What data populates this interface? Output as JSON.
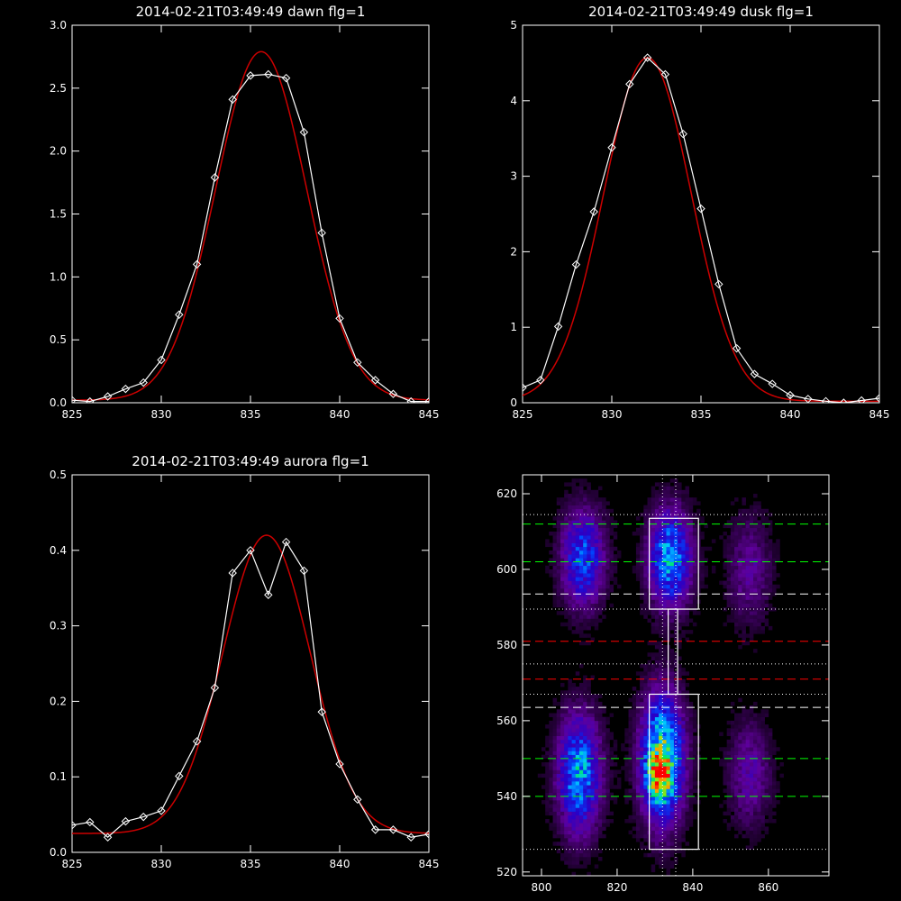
{
  "chart_data": [
    {
      "type": "line",
      "title": "2014-02-21T03:49:49 dawn flg=1",
      "xlabel": "",
      "ylabel": "",
      "xlim": [
        825,
        845
      ],
      "ylim": [
        0,
        3.0
      ],
      "xticks": [
        825,
        830,
        835,
        840,
        845
      ],
      "yticks": [
        0.0,
        0.5,
        1.0,
        1.5,
        2.0,
        2.5,
        3.0
      ],
      "ytick_labels": [
        "0.0",
        "0.5",
        "1.0",
        "1.5",
        "2.0",
        "2.5",
        "3.0"
      ],
      "series": [
        {
          "style": "measured",
          "color": "#ffffff",
          "marker": "diamond",
          "x": [
            825,
            826,
            827,
            828,
            829,
            830,
            831,
            832,
            833,
            834,
            835,
            836,
            837,
            838,
            839,
            840,
            841,
            842,
            843,
            844,
            845
          ],
          "y": [
            0.02,
            0.01,
            0.05,
            0.11,
            0.16,
            0.34,
            0.7,
            1.1,
            1.79,
            2.41,
            2.6,
            2.61,
            2.58,
            2.15,
            1.35,
            0.67,
            0.32,
            0.18,
            0.07,
            0.01,
            0.01
          ]
        },
        {
          "style": "fit",
          "color": "#cc0000",
          "model": "gaussian",
          "amplitude": 2.77,
          "center": 835.6,
          "sigma": 2.55,
          "offset": 0.02
        }
      ]
    },
    {
      "type": "line",
      "title": "2014-02-21T03:49:49 dusk flg=1",
      "xlabel": "",
      "ylabel": "",
      "xlim": [
        825,
        845
      ],
      "ylim": [
        0,
        5
      ],
      "xticks": [
        825,
        830,
        835,
        840,
        845
      ],
      "yticks": [
        0,
        1,
        2,
        3,
        4,
        5
      ],
      "ytick_labels": [
        "0",
        "1",
        "2",
        "3",
        "4",
        "5"
      ],
      "series": [
        {
          "style": "measured",
          "color": "#ffffff",
          "marker": "diamond",
          "x": [
            825,
            826,
            827,
            828,
            829,
            830,
            831,
            832,
            833,
            834,
            835,
            836,
            837,
            838,
            839,
            840,
            841,
            842,
            843,
            844,
            845
          ],
          "y": [
            0.2,
            0.3,
            1.01,
            1.83,
            2.53,
            3.38,
            4.22,
            4.57,
            4.35,
            3.56,
            2.57,
            1.57,
            0.72,
            0.38,
            0.25,
            0.1,
            0.05,
            0.02,
            0.0,
            0.03,
            0.06
          ]
        },
        {
          "style": "fit",
          "color": "#cc0000",
          "model": "gaussian",
          "amplitude": 4.55,
          "center": 832.0,
          "sigma": 2.45,
          "offset": 0.02
        }
      ]
    },
    {
      "type": "line",
      "title": "2014-02-21T03:49:49 aurora flg=1",
      "xlabel": "",
      "ylabel": "",
      "xlim": [
        825,
        845
      ],
      "ylim": [
        0,
        0.5
      ],
      "xticks": [
        825,
        830,
        835,
        840,
        845
      ],
      "yticks": [
        0.0,
        0.1,
        0.2,
        0.3,
        0.4,
        0.5
      ],
      "ytick_labels": [
        "0.0",
        "0.1",
        "0.2",
        "0.3",
        "0.4",
        "0.5"
      ],
      "series": [
        {
          "style": "measured",
          "color": "#ffffff",
          "marker": "diamond",
          "x": [
            825,
            826,
            827,
            828,
            829,
            830,
            831,
            832,
            833,
            834,
            835,
            836,
            837,
            838,
            839,
            840,
            841,
            842,
            843,
            844,
            845
          ],
          "y": [
            0.036,
            0.04,
            0.02,
            0.041,
            0.047,
            0.055,
            0.101,
            0.147,
            0.218,
            0.37,
            0.4,
            0.341,
            0.411,
            0.373,
            0.186,
            0.117,
            0.07,
            0.03,
            0.03,
            0.02,
            0.024
          ]
        },
        {
          "style": "fit",
          "color": "#cc0000",
          "model": "gaussian",
          "amplitude": 0.395,
          "center": 835.9,
          "sigma": 2.45,
          "offset": 0.025
        }
      ]
    },
    {
      "type": "heatmap",
      "title": "",
      "xlabel": "",
      "ylabel": "",
      "xlim": [
        795,
        876
      ],
      "ylim": [
        519,
        625
      ],
      "xticks": [
        800,
        820,
        840,
        860
      ],
      "yticks": [
        520,
        540,
        560,
        580,
        600,
        620
      ],
      "colormap": "rainbow",
      "blobs": [
        {
          "x": 811,
          "y": 603,
          "w": 4,
          "h": 9,
          "amp": 0.45
        },
        {
          "x": 810,
          "y": 546,
          "w": 4,
          "h": 11,
          "amp": 0.55
        },
        {
          "x": 834,
          "y": 603,
          "w": 4,
          "h": 9,
          "amp": 0.55
        },
        {
          "x": 832,
          "y": 550,
          "w": 4,
          "h": 12,
          "amp": 0.7
        },
        {
          "x": 831,
          "y": 545,
          "w": 2.5,
          "h": 4,
          "amp": 0.35
        },
        {
          "x": 855,
          "y": 600,
          "w": 4,
          "h": 10,
          "amp": 0.2
        },
        {
          "x": 855,
          "y": 546,
          "w": 4,
          "h": 10,
          "amp": 0.22
        }
      ],
      "boxes": [
        {
          "x0": 828.5,
          "x1": 841.5,
          "y0": 589.5,
          "y1": 613.5,
          "color": "#ffffff"
        },
        {
          "x0": 828.5,
          "x1": 841.5,
          "y0": 526,
          "y1": 567,
          "color": "#ffffff"
        },
        {
          "x0": 833.5,
          "x1": 836,
          "y0": 567,
          "y1": 589.5,
          "color": "#ffffff"
        }
      ],
      "hlines": [
        {
          "y": 612,
          "color": "#00ff00",
          "style": "dashed"
        },
        {
          "y": 602,
          "color": "#00ff00",
          "style": "dashed"
        },
        {
          "y": 593.5,
          "color": "#ffffff",
          "style": "dashed"
        },
        {
          "y": 581,
          "color": "#ff0000",
          "style": "dashed"
        },
        {
          "y": 571,
          "color": "#ff0000",
          "style": "dashed"
        },
        {
          "y": 563.5,
          "color": "#ffffff",
          "style": "dashed"
        },
        {
          "y": 550,
          "color": "#00ff00",
          "style": "dashed"
        },
        {
          "y": 540,
          "color": "#00ff00",
          "style": "dashed"
        },
        {
          "y": 614.5,
          "color": "#ffffff",
          "style": "dotted"
        },
        {
          "y": 589.5,
          "color": "#ffffff",
          "style": "dotted"
        },
        {
          "y": 575,
          "color": "#ffffff",
          "style": "dotted"
        },
        {
          "y": 567,
          "color": "#ffffff",
          "style": "dotted"
        },
        {
          "y": 526,
          "color": "#ffffff",
          "style": "dotted"
        }
      ],
      "vlines": [
        {
          "x": 832,
          "color": "#ffffff",
          "style": "dotted"
        },
        {
          "x": 835.5,
          "color": "#ffffff",
          "style": "dotted"
        }
      ]
    }
  ]
}
